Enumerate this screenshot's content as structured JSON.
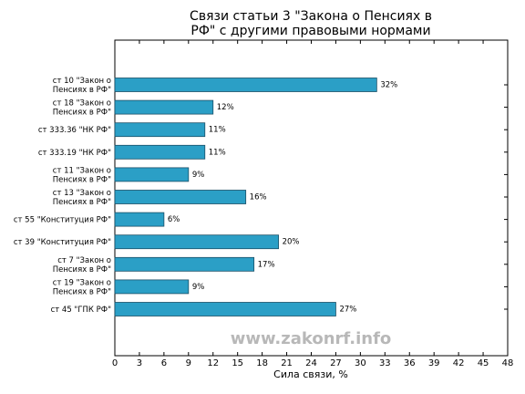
{
  "chart_data": {
    "type": "barh",
    "title": [
      "Связи статьи 3 \"Закона о Пенсиях в",
      "РФ\" с другими правовыми нормами"
    ],
    "xlabel": "Сила связи, %",
    "watermark": "www.zakonrf.info",
    "categories": [
      "ст 10 \"Закон о\nПенсиях в РФ\"",
      "ст 18 \"Закон о\nПенсиях в РФ\"",
      "ст 333.36 \"НК РФ\"",
      "ст 333.19 \"НК РФ\"",
      "ст 11 \"Закон о\nПенсиях в РФ\"",
      "ст 13 \"Закон о\nПенсиях в РФ\"",
      "ст 55 \"Конституция РФ\"",
      "ст 39 \"Конституция РФ\"",
      "ст 7 \"Закон о\nПенсиях в РФ\"",
      "ст 19 \"Закон о\nПенсиях в РФ\"",
      "ст 45 \"ГПК РФ\""
    ],
    "values": [
      32,
      12,
      11,
      11,
      9,
      16,
      6,
      20,
      17,
      9,
      27
    ],
    "value_labels": [
      "32%",
      "12%",
      "11%",
      "11%",
      "9%",
      "16%",
      "6%",
      "20%",
      "17%",
      "9%",
      "27%"
    ],
    "color": "#2b9fc6",
    "xlim": [
      0,
      48
    ],
    "xticks": [
      0,
      3,
      6,
      9,
      12,
      15,
      18,
      21,
      24,
      27,
      30,
      33,
      36,
      39,
      42,
      45,
      48
    ]
  }
}
